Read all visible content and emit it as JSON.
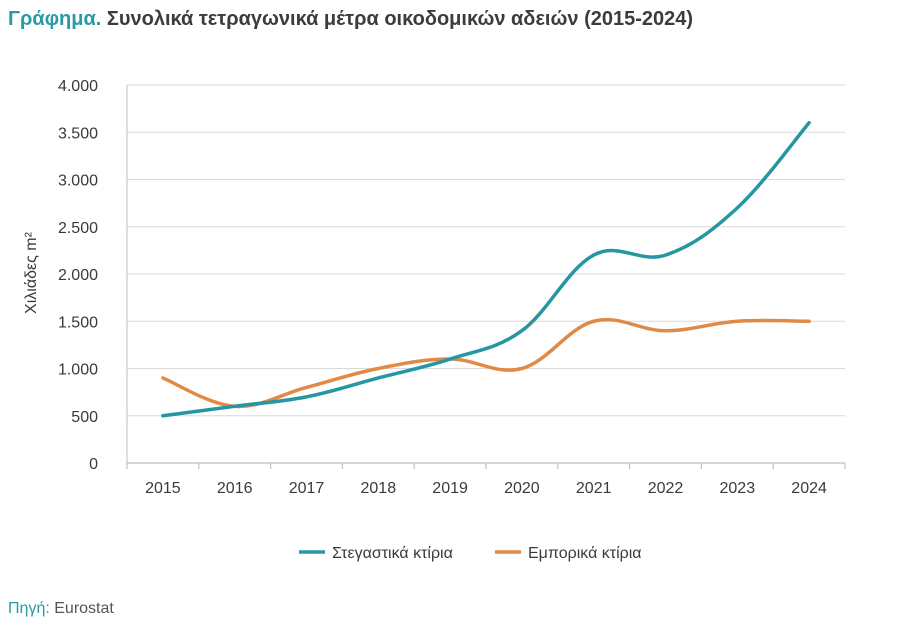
{
  "header": {
    "title_lead": "Γράφημα.",
    "title_rest": "Συνολικά τετραγωνικά μέτρα οικοδομικών αδειών (2015-2024)"
  },
  "source": {
    "label": "Πηγή:",
    "value": "Eurostat"
  },
  "colors": {
    "accent": "#2a9aa5",
    "residential": "#2596a2",
    "commercial": "#e08a45",
    "grid": "#d9d9d9",
    "axis": "#bfbfbf"
  },
  "chart_data": {
    "type": "line",
    "title": "Συνολικά τετραγωνικά μέτρα οικοδομικών αδειών (2015-2024)",
    "ylabel": "Χιλιάδες m²",
    "xlabel": "",
    "x": [
      "2015",
      "2016",
      "2017",
      "2018",
      "2019",
      "2020",
      "2021",
      "2022",
      "2023",
      "2024"
    ],
    "ylim": [
      0,
      4000
    ],
    "yticks": [
      {
        "value": 0,
        "label": "0"
      },
      {
        "value": 500,
        "label": "500"
      },
      {
        "value": 1000,
        "label": "1.000"
      },
      {
        "value": 1500,
        "label": "1.500"
      },
      {
        "value": 2000,
        "label": "2.000"
      },
      {
        "value": 2500,
        "label": "2.500"
      },
      {
        "value": 3000,
        "label": "3.000"
      },
      {
        "value": 3500,
        "label": "3.500"
      },
      {
        "value": 4000,
        "label": "4.000"
      }
    ],
    "grid": true,
    "legend_position": "bottom",
    "series": [
      {
        "name": "Στεγαστικά κτίρια",
        "color": "#2596a2",
        "values": [
          500,
          600,
          700,
          900,
          1100,
          1400,
          2200,
          2200,
          2700,
          3600
        ]
      },
      {
        "name": "Εμπορικά κτίρια",
        "color": "#e08a45",
        "values": [
          900,
          600,
          800,
          1000,
          1100,
          1000,
          1500,
          1400,
          1500,
          1500
        ]
      }
    ]
  }
}
